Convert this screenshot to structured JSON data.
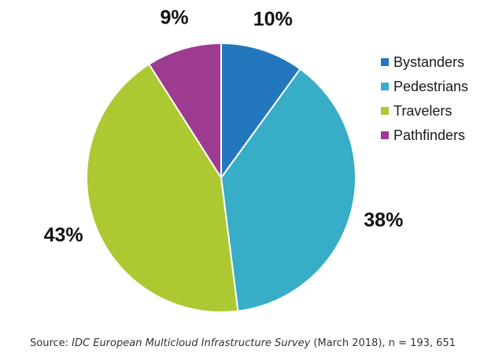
{
  "chart_data": {
    "type": "pie",
    "title": "",
    "slices": [
      {
        "label": "Bystanders",
        "value": 10,
        "value_label": "10%",
        "color": "#2378bd"
      },
      {
        "label": "Pedestrians",
        "value": 38,
        "value_label": "38%",
        "color": "#37adc8"
      },
      {
        "label": "Travelers",
        "value": 43,
        "value_label": "43%",
        "color": "#acc932"
      },
      {
        "label": "Pathfinders",
        "value": 9,
        "value_label": "9%",
        "color": "#9c3b8f"
      }
    ],
    "legend_placement": "right"
  },
  "source": {
    "prefix": "Source: ",
    "survey": "IDC European Multicloud Infrastructure Survey",
    "suffix": " (March 2018), n = 193, 651"
  }
}
